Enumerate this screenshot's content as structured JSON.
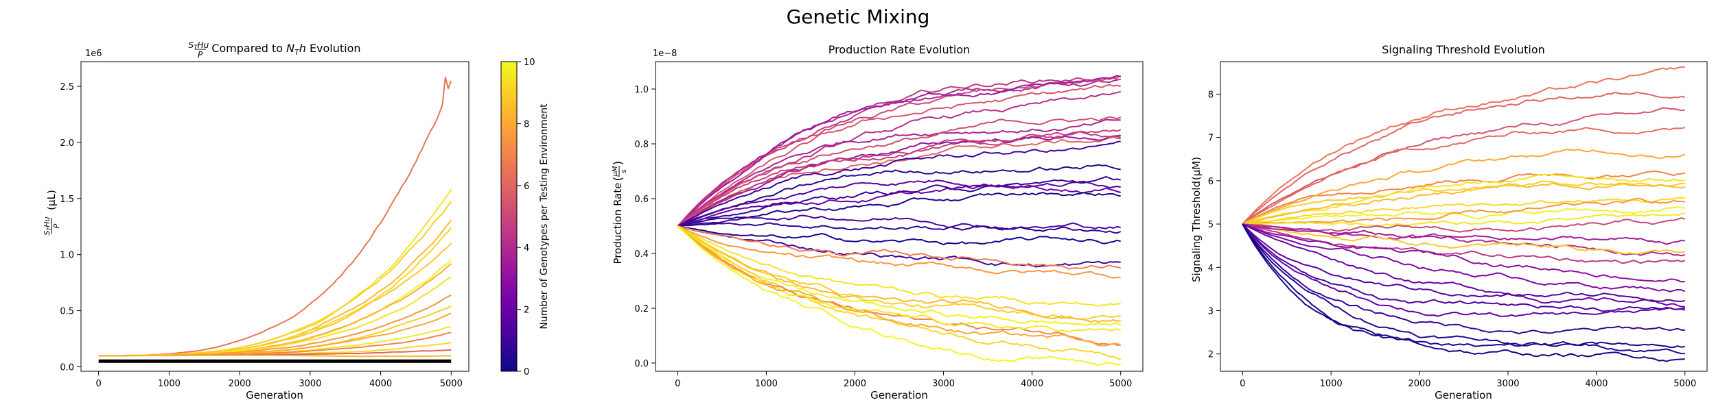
{
  "figure": {
    "suptitle": "Genetic Mixing"
  },
  "colormap": {
    "name": "plasma",
    "stops": [
      "#0d0887",
      "#46039f",
      "#7201a8",
      "#9c179e",
      "#bd3786",
      "#d8576b",
      "#ed7953",
      "#fb9f3a",
      "#fdca26",
      "#f0f921"
    ]
  },
  "colorbar": {
    "label": "Number of Genotypes per Testing Environment",
    "range": [
      0,
      10
    ],
    "ticks": [
      "0",
      "2",
      "4",
      "6",
      "8",
      "10"
    ]
  },
  "chart_data": [
    {
      "type": "line",
      "title": " Compared to ",
      "title_parts": [
        "Compared to",
        "Evolution"
      ],
      "xlabel": "Generation",
      "ylabel_unit": "(μL)",
      "offset_text": "1e6",
      "xlim": [
        -250,
        5250
      ],
      "ylim": [
        -0.04,
        2.72
      ],
      "xticks": [
        "0",
        "1000",
        "2000",
        "3000",
        "4000",
        "5000"
      ],
      "yticks": [
        "0.0",
        "0.5",
        "1.0",
        "1.5",
        "2.0",
        "2.5"
      ],
      "black_baseline_value": 0.05,
      "series_endpoints_by_color": [
        {
          "color_value": 6.5,
          "end": 2.5,
          "peak": 2.58
        },
        {
          "color_value": 9.5,
          "end": 1.55
        },
        {
          "color_value": 9.0,
          "end": 1.45
        },
        {
          "color_value": 8.5,
          "end": 1.3
        },
        {
          "color_value": 9.2,
          "end": 1.2
        },
        {
          "color_value": 8.8,
          "end": 1.1
        },
        {
          "color_value": 9.8,
          "end": 1.0
        },
        {
          "color_value": 8.2,
          "end": 0.9
        },
        {
          "color_value": 9.4,
          "end": 0.8
        },
        {
          "color_value": 7.5,
          "end": 0.65
        },
        {
          "color_value": 9.0,
          "end": 0.55
        },
        {
          "color_value": 8.0,
          "end": 0.45
        },
        {
          "color_value": 9.6,
          "end": 0.38
        },
        {
          "color_value": 7.0,
          "end": 0.3
        },
        {
          "color_value": 9.2,
          "end": 0.22
        },
        {
          "color_value": 6.0,
          "end": 0.15
        },
        {
          "color_value": 8.4,
          "end": 0.1
        }
      ],
      "start_value": 0.1
    },
    {
      "type": "line",
      "title": "Production Rate Evolution",
      "xlabel": "Generation",
      "ylabel": "Production Rate",
      "offset_text": "1e−8",
      "xlim": [
        -250,
        5250
      ],
      "ylim": [
        -0.03,
        1.1
      ],
      "xticks": [
        "0",
        "1000",
        "2000",
        "3000",
        "4000",
        "5000"
      ],
      "yticks": [
        "0.0",
        "0.2",
        "0.4",
        "0.6",
        "0.8",
        "1.0"
      ],
      "start_value": 0.5,
      "series_endpoints_by_color": [
        {
          "color_value": 4.5,
          "end": 1.04
        },
        {
          "color_value": 4.0,
          "end": 1.02
        },
        {
          "color_value": 5.0,
          "end": 0.99
        },
        {
          "color_value": 3.5,
          "end": 0.97
        },
        {
          "color_value": 5.5,
          "end": 0.95
        },
        {
          "color_value": 4.2,
          "end": 0.93
        },
        {
          "color_value": 3.8,
          "end": 0.91
        },
        {
          "color_value": 5.2,
          "end": 0.89
        },
        {
          "color_value": 4.8,
          "end": 0.87
        },
        {
          "color_value": 6.0,
          "end": 0.85
        },
        {
          "color_value": 3.2,
          "end": 0.83
        },
        {
          "color_value": 4.6,
          "end": 0.81
        },
        {
          "color_value": 1.0,
          "end": 0.76
        },
        {
          "color_value": 0.5,
          "end": 0.73
        },
        {
          "color_value": 1.5,
          "end": 0.7
        },
        {
          "color_value": 0.8,
          "end": 0.67
        },
        {
          "color_value": 2.0,
          "end": 0.64
        },
        {
          "color_value": 0.3,
          "end": 0.61
        },
        {
          "color_value": 1.2,
          "end": 0.55
        },
        {
          "color_value": 0.6,
          "end": 0.52
        },
        {
          "color_value": 0.2,
          "end": 0.41
        },
        {
          "color_value": 1.0,
          "end": 0.36
        },
        {
          "color_value": 6.8,
          "end": 0.37
        },
        {
          "color_value": 7.5,
          "end": 0.27
        },
        {
          "color_value": 9.5,
          "end": 0.22
        },
        {
          "color_value": 9.0,
          "end": 0.19
        },
        {
          "color_value": 8.5,
          "end": 0.16
        },
        {
          "color_value": 9.8,
          "end": 0.13
        },
        {
          "color_value": 9.2,
          "end": 0.1
        },
        {
          "color_value": 7.0,
          "end": 0.08
        },
        {
          "color_value": 9.6,
          "end": 0.06
        },
        {
          "color_value": 8.0,
          "end": 0.04
        },
        {
          "color_value": 9.9,
          "end": 0.03
        }
      ]
    },
    {
      "type": "line",
      "title": "Signaling Threshold Evolution",
      "xlabel": "Generation",
      "ylabel": "Signaling Threshold",
      "ylabel_unit": "(μM)",
      "xlim": [
        -250,
        5250
      ],
      "ylim": [
        1.6,
        8.75
      ],
      "xticks": [
        "0",
        "1000",
        "2000",
        "3000",
        "4000",
        "5000"
      ],
      "yticks": [
        "2",
        "3",
        "4",
        "5",
        "6",
        "7",
        "8"
      ],
      "start_value": 5.0,
      "series_endpoints_by_color": [
        {
          "color_value": 6.5,
          "end": 8.55
        },
        {
          "color_value": 6.0,
          "end": 8.1
        },
        {
          "color_value": 5.5,
          "end": 7.5
        },
        {
          "color_value": 6.2,
          "end": 7.2
        },
        {
          "color_value": 7.0,
          "end": 6.9
        },
        {
          "color_value": 8.0,
          "end": 6.7
        },
        {
          "color_value": 9.0,
          "end": 6.4
        },
        {
          "color_value": 9.5,
          "end": 6.1
        },
        {
          "color_value": 8.5,
          "end": 5.8
        },
        {
          "color_value": 9.8,
          "end": 5.6
        },
        {
          "color_value": 9.2,
          "end": 5.4
        },
        {
          "color_value": 7.5,
          "end": 5.2
        },
        {
          "color_value": 9.6,
          "end": 5.0
        },
        {
          "color_value": 5.0,
          "end": 4.8
        },
        {
          "color_value": 4.0,
          "end": 4.6
        },
        {
          "color_value": 8.8,
          "end": 4.4
        },
        {
          "color_value": 3.5,
          "end": 4.3
        },
        {
          "color_value": 4.5,
          "end": 4.1
        },
        {
          "color_value": 3.0,
          "end": 3.8
        },
        {
          "color_value": 2.5,
          "end": 3.6
        },
        {
          "color_value": 2.0,
          "end": 3.4
        },
        {
          "color_value": 1.5,
          "end": 3.2
        },
        {
          "color_value": 1.2,
          "end": 3.0
        },
        {
          "color_value": 1.8,
          "end": 2.85
        },
        {
          "color_value": 0.8,
          "end": 2.55
        },
        {
          "color_value": 0.5,
          "end": 2.3
        },
        {
          "color_value": 0.3,
          "end": 2.05
        },
        {
          "color_value": 0.1,
          "end": 1.8
        }
      ]
    }
  ]
}
